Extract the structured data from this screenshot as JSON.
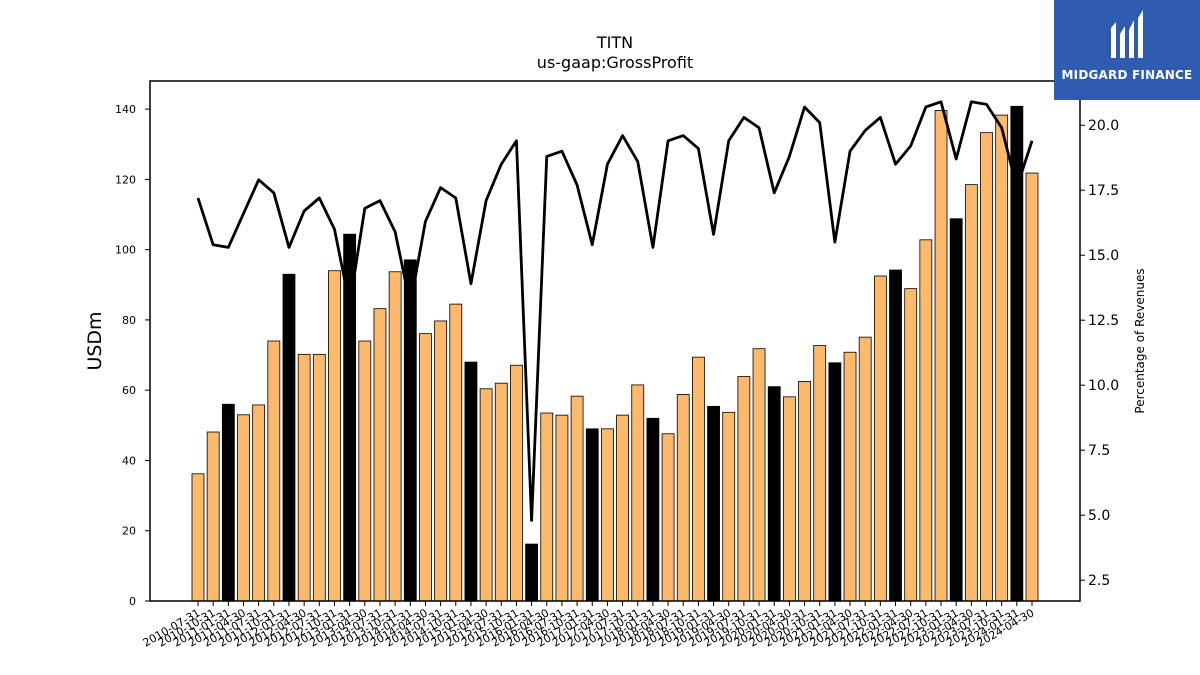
{
  "brand": {
    "name": "MIDGARD FINANCE",
    "bg_color": "#2f5bb0"
  },
  "colors": {
    "bar_regular": "#FDB96B",
    "bar_highlight": "#000000",
    "line": "#000000"
  },
  "chart_data": {
    "type": "bar",
    "title": "TITN",
    "subtitle": "us-gaap:GrossProfit",
    "ylabel": "USDm",
    "ylabel_right": "Percentage of Revenues",
    "ylim": [
      0,
      148
    ],
    "ylim_right": [
      1.7,
      21.7
    ],
    "yticks": [
      0,
      20,
      40,
      60,
      80,
      100,
      120,
      140
    ],
    "yticks_right": [
      2.5,
      5.0,
      7.5,
      10.0,
      12.5,
      15.0,
      17.5,
      20.0
    ],
    "categories": [
      "2010-07-31",
      "2010-10-31",
      "2011-01-31",
      "2011-04-30",
      "2011-07-31",
      "2011-10-31",
      "2012-01-31",
      "2012-04-30",
      "2012-07-31",
      "2012-10-31",
      "2013-01-31",
      "2013-04-30",
      "2013-07-31",
      "2013-10-31",
      "2014-01-31",
      "2014-04-30",
      "2014-07-31",
      "2014-10-31",
      "2015-01-31",
      "2015-04-30",
      "2015-07-31",
      "2015-10-31",
      "2016-01-31",
      "2016-04-30",
      "2016-07-31",
      "2016-10-31",
      "2017-01-31",
      "2017-04-30",
      "2017-07-31",
      "2017-10-31",
      "2018-01-31",
      "2018-04-30",
      "2018-07-31",
      "2018-10-31",
      "2019-01-31",
      "2019-04-30",
      "2019-07-31",
      "2019-10-31",
      "2020-01-31",
      "2020-04-30",
      "2020-07-31",
      "2020-10-31",
      "2021-01-31",
      "2021-04-30",
      "2021-07-31",
      "2021-10-31",
      "2022-01-31",
      "2022-04-30",
      "2022-07-31",
      "2022-10-31",
      "2023-01-31",
      "2023-04-30",
      "2023-07-31",
      "2023-10-31",
      "2024-01-31",
      "2024-04-30"
    ],
    "xtick_labels": [
      "2010-07-31",
      "2010-10-31",
      "2011-01-31",
      "2011-04-30",
      "2011-07-31",
      "2011-10-31",
      "2012-01-31",
      "2012-04-30",
      "2012-07-31",
      "2012-10-31",
      "2013-01-31",
      "2013-04-30",
      "2013-07-31",
      "2013-10-31",
      "2014-01-31",
      "2014-04-30",
      "2014-07-31",
      "2014-10-31",
      "2015-01-31",
      "2015-04-30",
      "2015-07-31",
      "2015-10-31",
      "2016-01-31",
      "2016-04-30",
      "2016-07-31",
      "2016-10-31",
      "2017-01-31",
      "2017-04-30",
      "2017-07-31",
      "2017-10-31",
      "2018-01-31",
      "2018-04-30",
      "2018-07-31",
      "2018-10-31",
      "2019-01-31",
      "2019-04-30",
      "2019-07-31",
      "2019-10-31",
      "2020-01-31",
      "2020-04-30",
      "2020-07-31",
      "2020-10-31",
      "2021-01-31",
      "2021-04-30",
      "2021-07-31",
      "2021-10-31",
      "2022-01-31",
      "2022-04-30",
      "2022-07-31",
      "2022-10-31",
      "2023-01-31",
      "2023-04-30",
      "2023-07-31",
      "2023-10-31",
      "2024-01-31",
      "2024-04-30"
    ],
    "series": [
      {
        "axis": "left",
        "kind": "bar",
        "values": [
          36.2,
          48.1,
          56.0,
          53.0,
          55.8,
          74.0,
          93.0,
          70.2,
          70.2,
          94.0,
          104.4,
          74.0,
          83.2,
          93.7,
          97.1,
          76.1,
          79.7,
          84.5,
          68.0,
          60.4,
          62.0,
          67.1,
          16.2,
          53.5,
          52.9,
          58.3,
          49.0,
          49.0,
          52.9,
          61.5,
          52.0,
          47.6,
          58.8,
          69.4,
          55.4,
          53.7,
          63.9,
          71.8,
          61.0,
          58.1,
          62.5,
          72.7,
          67.8,
          70.8,
          75.1,
          92.5,
          94.2,
          88.9,
          102.8,
          139.6,
          108.8,
          118.5,
          133.3,
          138.3,
          140.8,
          121.8
        ],
        "highlight": [
          false,
          false,
          true,
          false,
          false,
          false,
          true,
          false,
          false,
          false,
          true,
          false,
          false,
          false,
          true,
          false,
          false,
          false,
          true,
          false,
          false,
          false,
          true,
          false,
          false,
          false,
          true,
          false,
          false,
          false,
          true,
          false,
          false,
          false,
          true,
          false,
          false,
          false,
          true,
          false,
          false,
          false,
          true,
          false,
          false,
          false,
          true,
          false,
          false,
          false,
          true,
          false,
          false,
          false,
          true,
          false
        ]
      },
      {
        "axis": "right",
        "kind": "line",
        "values": [
          17.2,
          15.4,
          15.3,
          16.6,
          17.9,
          17.4,
          15.3,
          16.7,
          17.2,
          16.0,
          13.1,
          16.8,
          17.1,
          15.9,
          13.1,
          16.3,
          17.6,
          17.2,
          13.9,
          17.1,
          18.5,
          19.4,
          4.8,
          18.8,
          19.0,
          17.7,
          15.4,
          18.5,
          19.6,
          18.6,
          15.3,
          19.4,
          19.6,
          19.1,
          15.8,
          19.4,
          20.3,
          19.9,
          17.4,
          18.8,
          20.7,
          20.1,
          15.5,
          19.0,
          19.8,
          20.3,
          18.5,
          19.2,
          20.7,
          20.9,
          18.7,
          20.9,
          20.8,
          19.9,
          17.6,
          19.4
        ]
      }
    ]
  }
}
